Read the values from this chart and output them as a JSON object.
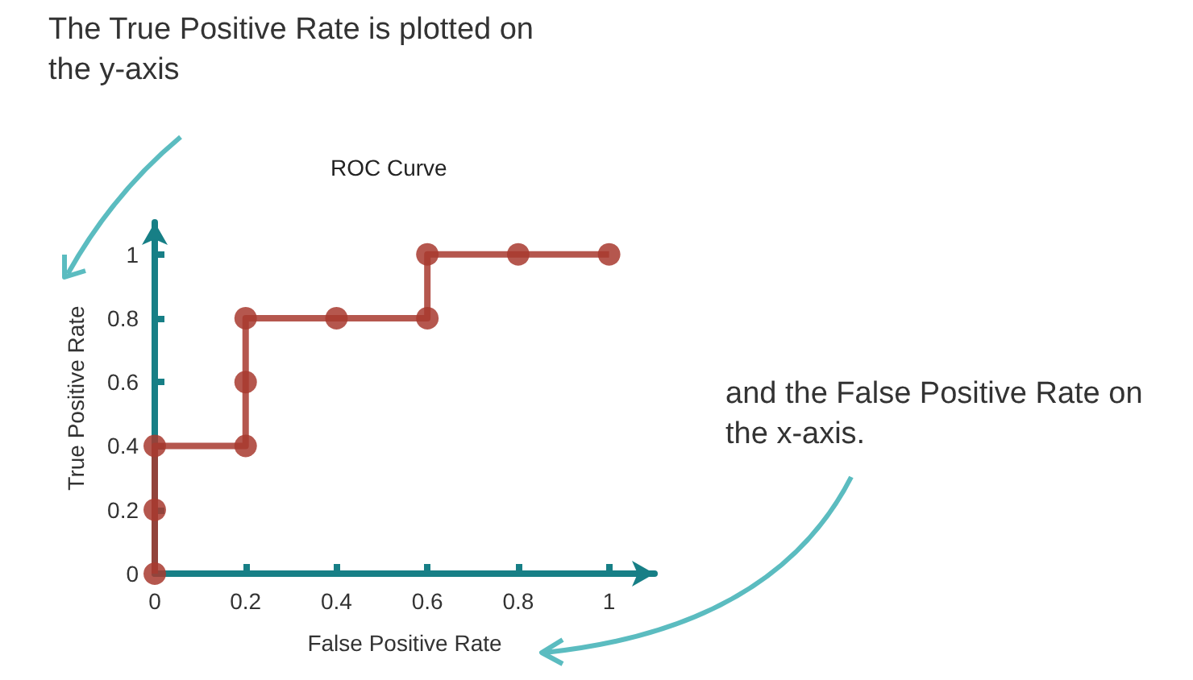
{
  "chart_data": {
    "type": "line",
    "title": "ROC Curve",
    "xlabel": "False Positive Rate",
    "ylabel": "True Positive Rate",
    "annotations": [
      "The True Positive Rate is plotted on the y-axis",
      "and the False Positive Rate on the x-axis."
    ],
    "x": [
      0,
      0,
      0,
      0.2,
      0.2,
      0.2,
      0.4,
      0.6,
      0.6,
      0.8,
      1
    ],
    "series": [
      {
        "color": "#a8392f",
        "values": [
          0,
          0.2,
          0.4,
          0.4,
          0.6,
          0.8,
          0.8,
          0.8,
          1,
          1,
          1
        ]
      }
    ],
    "xlim": [
      0,
      1.1
    ],
    "ylim": [
      0,
      1.1
    ],
    "xticks": [
      0,
      0.2,
      0.4,
      0.6,
      0.8,
      1
    ],
    "yticks": [
      0,
      0.2,
      0.4,
      0.6,
      0.8,
      1
    ],
    "grid": false,
    "marker": "circle",
    "line_style": "solid"
  }
}
